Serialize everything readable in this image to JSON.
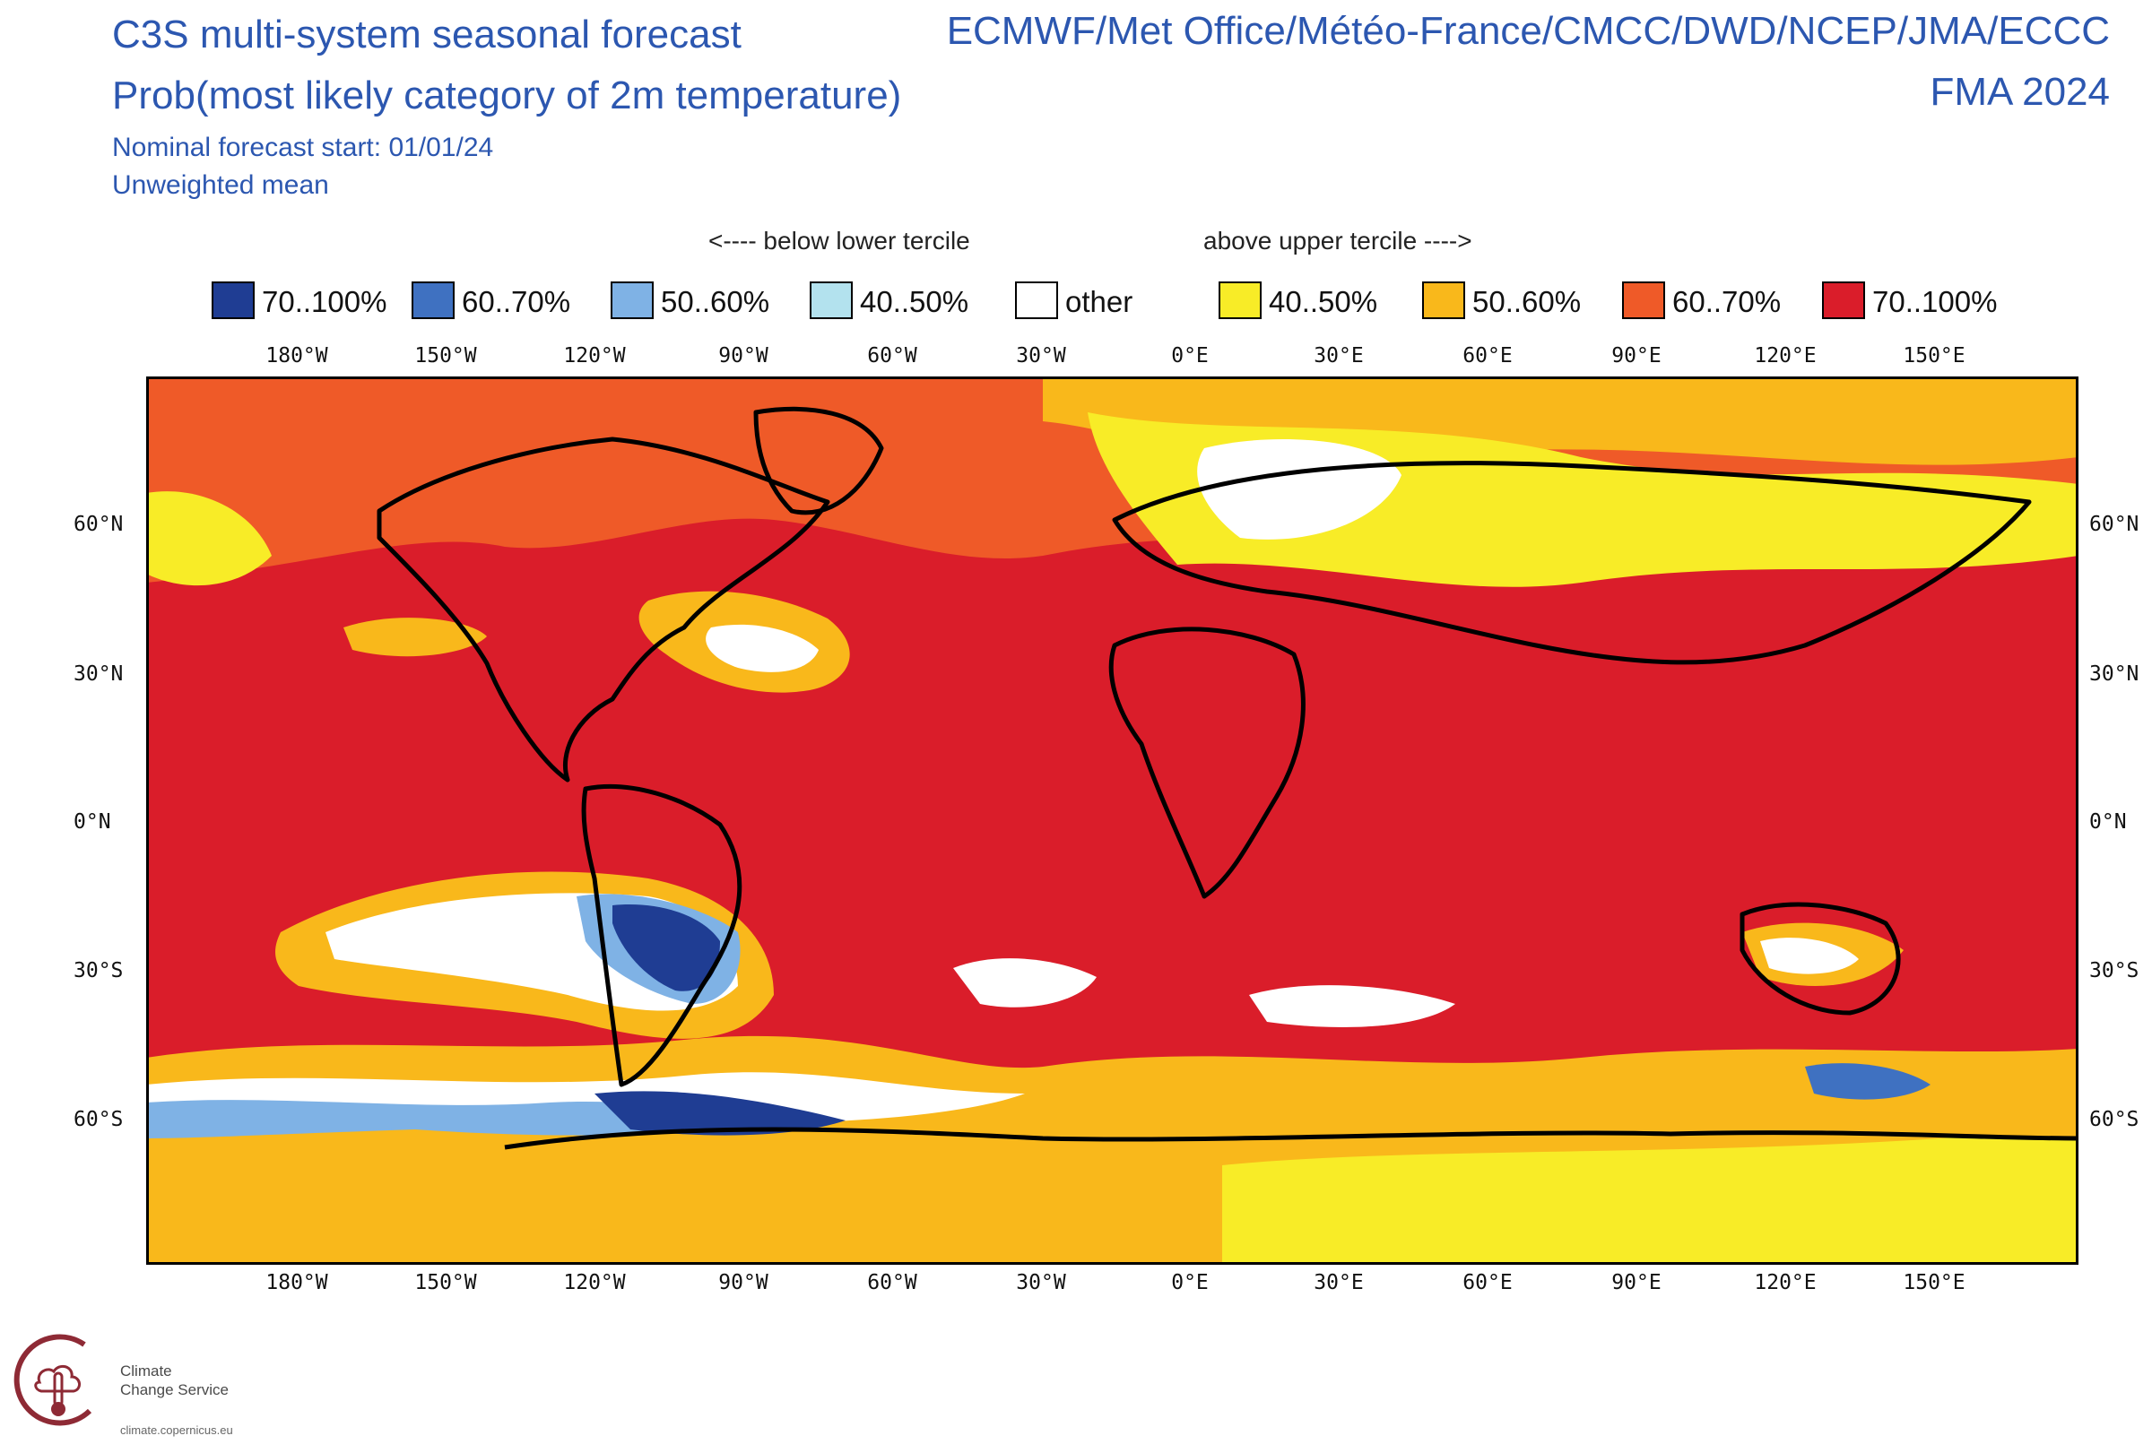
{
  "header": {
    "title_line1": "C3S multi-system seasonal forecast",
    "title_line2": "Prob(most likely category of 2m temperature)",
    "start_line": "Nominal forecast start: 01/01/24",
    "mean_line": "Unweighted mean",
    "centres": "ECMWF/Met Office/Météo-France/CMCC/DWD/NCEP/JMA/ECCC",
    "period": "FMA 2024"
  },
  "legend": {
    "below_caption": "<---- below lower tercile",
    "above_caption": "above upper tercile ---->",
    "items": [
      {
        "label": "70..100%",
        "color": "#1f3d93"
      },
      {
        "label": "60..70%",
        "color": "#3f71c1"
      },
      {
        "label": "50..60%",
        "color": "#7fb2e5"
      },
      {
        "label": "40..50%",
        "color": "#b3e2ee"
      },
      {
        "label": "other",
        "color": "#ffffff"
      },
      {
        "label": "40..50%",
        "color": "#f8ec27"
      },
      {
        "label": "50..60%",
        "color": "#f9b81b"
      },
      {
        "label": "60..70%",
        "color": "#ef5a28"
      },
      {
        "label": "70..100%",
        "color": "#da1d2a"
      }
    ]
  },
  "axes": {
    "lon_labels": [
      "180°W",
      "150°W",
      "120°W",
      "90°W",
      "60°W",
      "30°W",
      "0°E",
      "30°E",
      "60°E",
      "90°E",
      "120°E",
      "150°E"
    ],
    "lat_labels": [
      "60°N",
      "30°N",
      "0°N",
      "30°S",
      "60°S"
    ]
  },
  "logo": {
    "line1": "Climate",
    "line2": "Change Service",
    "url": "climate.copernicus.eu"
  }
}
